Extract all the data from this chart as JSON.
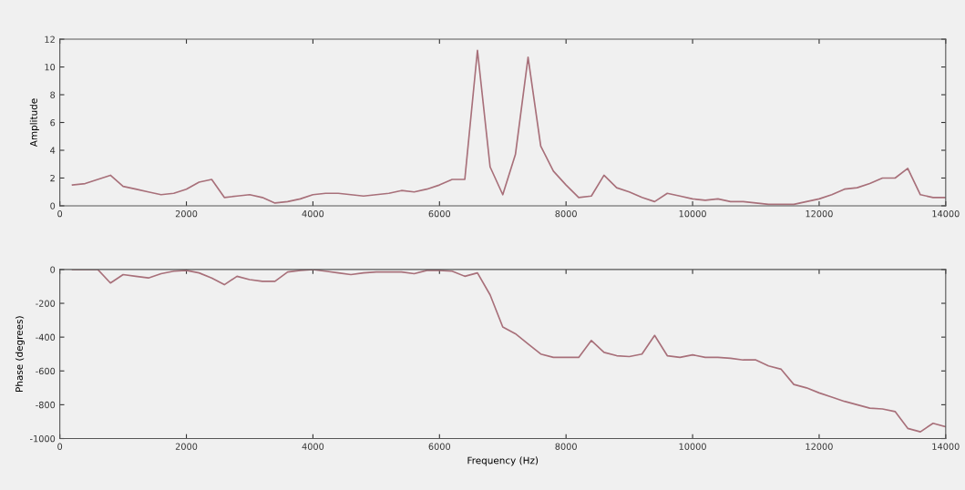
{
  "chart_data": [
    {
      "type": "line",
      "ylabel": "Amplitude",
      "xlim": [
        0,
        14000
      ],
      "xticks": [
        0,
        2000,
        4000,
        6000,
        8000,
        10000,
        12000,
        14000
      ],
      "ylim": [
        0,
        12
      ],
      "yticks": [
        0,
        2,
        4,
        6,
        8,
        10,
        12
      ],
      "grid": false,
      "legend": false,
      "x": [
        200,
        400,
        600,
        800,
        1000,
        1200,
        1400,
        1600,
        1800,
        2000,
        2200,
        2400,
        2600,
        2800,
        3000,
        3200,
        3400,
        3600,
        3800,
        4000,
        4200,
        4400,
        4600,
        4800,
        5000,
        5200,
        5400,
        5600,
        5800,
        6000,
        6200,
        6400,
        6600,
        6800,
        7000,
        7200,
        7400,
        7600,
        7800,
        8000,
        8200,
        8400,
        8600,
        8800,
        9000,
        9200,
        9400,
        9600,
        9800,
        10000,
        10200,
        10400,
        10600,
        10800,
        11000,
        11200,
        11400,
        11600,
        11800,
        12000,
        12200,
        12400,
        12600,
        12800,
        13000,
        13200,
        13400,
        13600,
        13800,
        14000
      ],
      "series": [
        {
          "color": "#a8707a",
          "values": [
            1.5,
            1.6,
            1.9,
            2.2,
            1.4,
            1.2,
            1.0,
            0.8,
            0.9,
            1.2,
            1.7,
            1.9,
            0.6,
            0.7,
            0.8,
            0.6,
            0.2,
            0.3,
            0.5,
            0.8,
            0.9,
            0.9,
            0.8,
            0.7,
            0.8,
            0.9,
            1.1,
            1.0,
            1.2,
            1.5,
            1.9,
            1.9,
            11.2,
            2.8,
            0.8,
            3.7,
            10.7,
            4.3,
            2.5,
            1.5,
            0.6,
            0.7,
            2.2,
            1.3,
            1.0,
            0.6,
            0.3,
            0.9,
            0.7,
            0.5,
            0.4,
            0.5,
            0.3,
            0.3,
            0.2,
            0.1,
            0.1,
            0.1,
            0.3,
            0.5,
            0.8,
            1.2,
            1.3,
            1.6,
            2.0,
            2.0,
            2.7,
            0.8,
            0.6,
            0.6
          ]
        }
      ]
    },
    {
      "type": "line",
      "xlabel": "Frequency (Hz)",
      "ylabel": "Phase (degrees)",
      "xlim": [
        0,
        14000
      ],
      "xticks": [
        0,
        2000,
        4000,
        6000,
        8000,
        10000,
        12000,
        14000
      ],
      "ylim": [
        -1000,
        0
      ],
      "yticks": [
        -1000,
        -800,
        -600,
        -400,
        -200,
        0
      ],
      "grid": false,
      "legend": false,
      "x": [
        200,
        400,
        600,
        800,
        1000,
        1200,
        1400,
        1600,
        1800,
        2000,
        2200,
        2400,
        2600,
        2800,
        3000,
        3200,
        3400,
        3600,
        3800,
        4000,
        4200,
        4400,
        4600,
        4800,
        5000,
        5200,
        5400,
        5600,
        5800,
        6000,
        6200,
        6400,
        6600,
        6800,
        7000,
        7200,
        7400,
        7600,
        7800,
        8000,
        8200,
        8400,
        8600,
        8800,
        9000,
        9200,
        9400,
        9600,
        9800,
        10000,
        10200,
        10400,
        10600,
        10800,
        11000,
        11200,
        11400,
        11600,
        11800,
        12000,
        12200,
        12400,
        12600,
        12800,
        13000,
        13200,
        13400,
        13600,
        13800,
        14000
      ],
      "series": [
        {
          "color": "#a8707a",
          "values": [
            0,
            0,
            0,
            -80,
            -30,
            -40,
            -50,
            -25,
            -10,
            -5,
            -20,
            -50,
            -90,
            -40,
            -60,
            -70,
            -70,
            -15,
            -5,
            0,
            -10,
            -20,
            -30,
            -20,
            -15,
            -15,
            -15,
            -25,
            -5,
            -5,
            -10,
            -40,
            -20,
            -150,
            -340,
            -380,
            -440,
            -500,
            -520,
            -520,
            -520,
            -420,
            -490,
            -510,
            -515,
            -500,
            -390,
            -510,
            -520,
            -505,
            -520,
            -520,
            -525,
            -535,
            -535,
            -570,
            -590,
            -680,
            -700,
            -730,
            -755,
            -780,
            -800,
            -820,
            -825,
            -840,
            -940,
            -960,
            -910,
            -930
          ]
        }
      ]
    }
  ]
}
